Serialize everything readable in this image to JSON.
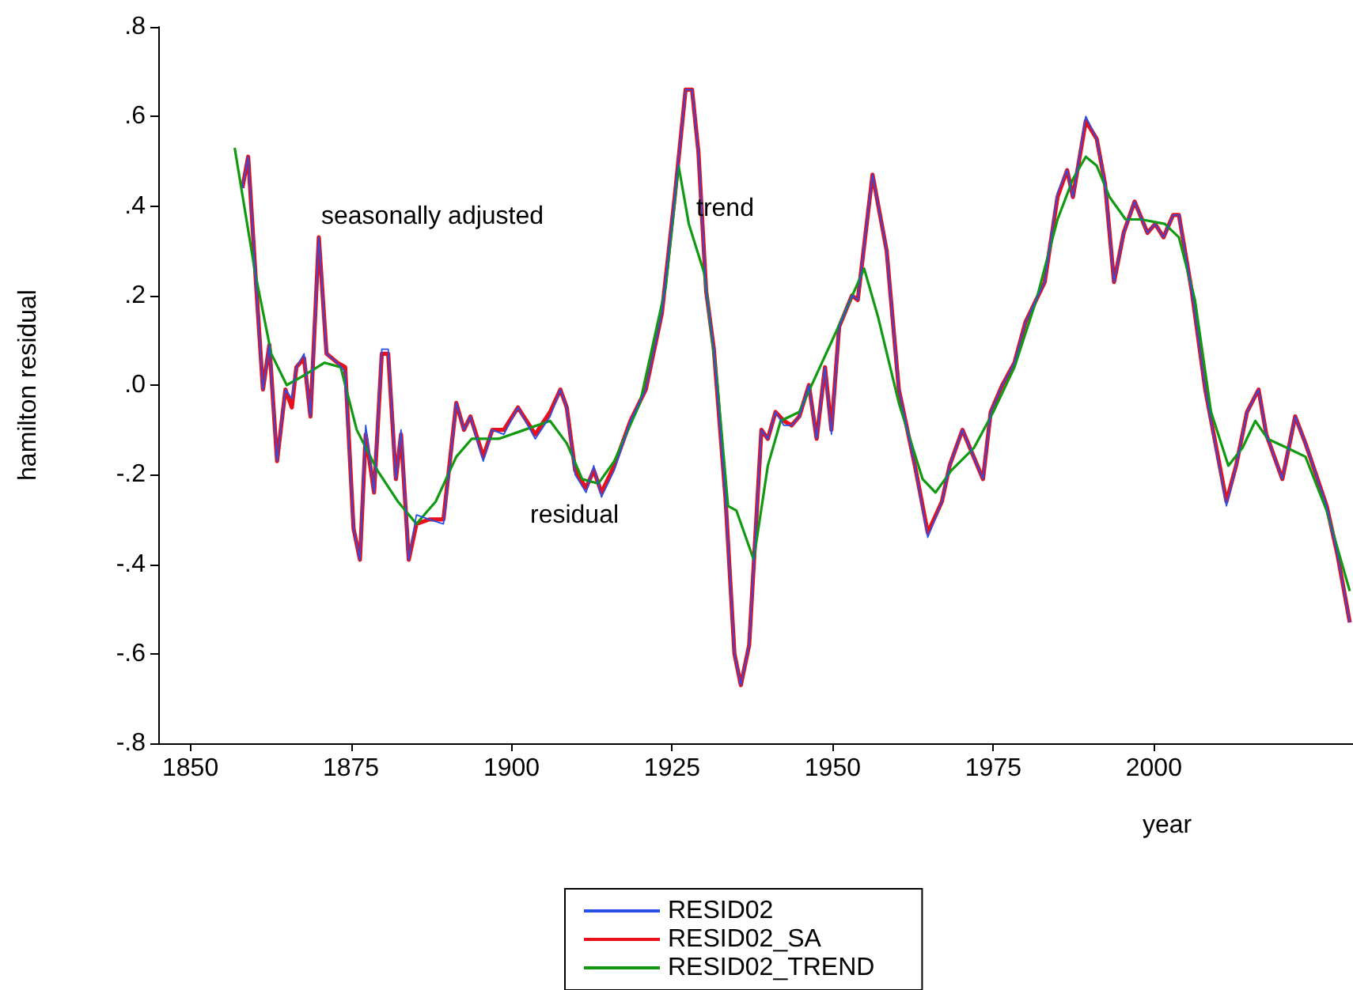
{
  "chart_data": {
    "type": "line",
    "xlabel": "year",
    "ylabel": "hamilton residual",
    "xlim": [
      1845,
      2031
    ],
    "xticks": [
      1850,
      1875,
      1900,
      1925,
      1950,
      1975,
      2000
    ],
    "ylim": [
      -0.8,
      0.8
    ],
    "yticks": [
      {
        "value": 0.8,
        "label": ".8"
      },
      {
        "value": 0.6,
        "label": ".6"
      },
      {
        "value": 0.4,
        "label": ".4"
      },
      {
        "value": 0.2,
        "label": ".2"
      },
      {
        "value": 0,
        "label": ".0"
      },
      {
        "value": -0.2,
        "label": "-.2"
      },
      {
        "value": -0.4,
        "label": "-.4"
      },
      {
        "value": -0.6,
        "label": "-.6"
      },
      {
        "value": -0.8,
        "label": "-.8"
      }
    ],
    "grid": false,
    "legend": "bottom",
    "marker": "none",
    "line_style": "solid",
    "annotations": [
      "seasonally adjusted",
      "trend",
      "residual"
    ],
    "series": [
      {
        "name": "RESID02",
        "color": "#2a4fe8",
        "x": [
          1858.1,
          1859,
          1860.3,
          1861.3,
          1862.3,
          1863.5,
          1864.8,
          1865.8,
          1866.5,
          1867.7,
          1868.7,
          1870,
          1871.2,
          1872.9,
          1874.1,
          1875.4,
          1876.4,
          1877.3,
          1878.6,
          1879.8,
          1880.8,
          1882,
          1882.8,
          1884,
          1885.2,
          1887.2,
          1889.4,
          1891.4,
          1892.6,
          1893.6,
          1895.6,
          1897,
          1898.8,
          1901,
          1903.7,
          1906,
          1907.6,
          1908.6,
          1909.9,
          1911.6,
          1912.8,
          1914,
          1916,
          1918.5,
          1920.9,
          1923.4,
          1925.4,
          1927.1,
          1928.1,
          1929.1,
          1930.3,
          1931.5,
          1933.3,
          1934.7,
          1935.7,
          1937,
          1938.9,
          1939.9,
          1941.1,
          1942.4,
          1943.6,
          1944.8,
          1946.3,
          1947.5,
          1948.8,
          1949.8,
          1951,
          1953,
          1953.9,
          1956.2,
          1958.4,
          1960.3,
          1962.8,
          1964.8,
          1967,
          1968.2,
          1970.2,
          1973.4,
          1974.6,
          1976.4,
          1978.3,
          1980,
          1983,
          1985,
          1986.5,
          1987.4,
          1989.4,
          1991.1,
          1992.4,
          1993.8,
          1995.3,
          1997,
          1999,
          2000.2,
          2001.5,
          2003,
          2003.9,
          2005.9,
          2008,
          2011.3,
          2012.8,
          2014.5,
          2016.3,
          2017.5,
          2020,
          2022,
          2023.6,
          2026.9,
          2028.6,
          2030.5
        ],
        "values": [
          0.44,
          0.51,
          0.21,
          -0.01,
          0.09,
          -0.17,
          -0.01,
          -0.03,
          0.04,
          0.07,
          -0.07,
          0.33,
          0.07,
          0.05,
          0.03,
          -0.32,
          -0.39,
          -0.09,
          -0.24,
          0.08,
          0.08,
          -0.21,
          -0.1,
          -0.39,
          -0.29,
          -0.3,
          -0.31,
          -0.04,
          -0.1,
          -0.07,
          -0.17,
          -0.1,
          -0.11,
          -0.05,
          -0.12,
          -0.07,
          -0.01,
          -0.05,
          -0.2,
          -0.24,
          -0.18,
          -0.25,
          -0.19,
          -0.08,
          -0.01,
          0.16,
          0.42,
          0.66,
          0.66,
          0.52,
          0.21,
          0.08,
          -0.25,
          -0.6,
          -0.67,
          -0.58,
          -0.1,
          -0.12,
          -0.06,
          -0.09,
          -0.09,
          -0.07,
          0,
          -0.12,
          0.04,
          -0.11,
          0.13,
          0.2,
          0.19,
          0.47,
          0.3,
          -0.01,
          -0.18,
          -0.34,
          -0.26,
          -0.18,
          -0.1,
          -0.21,
          -0.06,
          0,
          0.05,
          0.14,
          0.23,
          0.43,
          0.48,
          0.42,
          0.6,
          0.55,
          0.45,
          0.23,
          0.34,
          0.41,
          0.34,
          0.36,
          0.33,
          0.38,
          0.38,
          0.21,
          -0.01,
          -0.27,
          -0.18,
          -0.06,
          -0.01,
          -0.11,
          -0.21,
          -0.07,
          -0.13,
          -0.27,
          -0.38,
          -0.53
        ]
      },
      {
        "name": "RESID02_SA",
        "color": "#e8101a",
        "x": [
          1858.1,
          1859,
          1860.3,
          1861.3,
          1862.3,
          1863.5,
          1864.8,
          1865.8,
          1866.5,
          1867.7,
          1868.7,
          1870,
          1871.2,
          1872.9,
          1874.1,
          1875.4,
          1876.4,
          1877.3,
          1878.6,
          1879.8,
          1880.8,
          1882,
          1882.8,
          1884,
          1885.2,
          1887.2,
          1889.4,
          1891.4,
          1892.6,
          1893.6,
          1895.6,
          1897,
          1898.8,
          1901,
          1903.7,
          1906,
          1907.6,
          1908.6,
          1909.9,
          1911.6,
          1912.8,
          1914,
          1916,
          1918.5,
          1920.9,
          1923.4,
          1925.4,
          1927.1,
          1928.1,
          1929.1,
          1930.3,
          1931.5,
          1933.3,
          1934.7,
          1935.7,
          1937,
          1938.9,
          1939.9,
          1941.1,
          1942.4,
          1943.6,
          1944.8,
          1946.3,
          1947.5,
          1948.8,
          1949.8,
          1951,
          1953,
          1953.9,
          1956.2,
          1958.4,
          1960.3,
          1962.8,
          1964.8,
          1967,
          1968.2,
          1970.2,
          1973.4,
          1974.6,
          1976.4,
          1978.3,
          1980,
          1983,
          1985,
          1986.5,
          1987.4,
          1989.4,
          1991.1,
          1992.4,
          1993.8,
          1995.3,
          1997,
          1999,
          2000.2,
          2001.5,
          2003,
          2003.9,
          2005.9,
          2008,
          2011.3,
          2012.8,
          2014.5,
          2016.3,
          2017.5,
          2020,
          2022,
          2023.6,
          2026.9,
          2028.6,
          2030.5
        ],
        "values": [
          0.44,
          0.51,
          0.21,
          -0.01,
          0.09,
          -0.17,
          -0.01,
          -0.05,
          0.04,
          0.06,
          -0.07,
          0.33,
          0.07,
          0.05,
          0.04,
          -0.32,
          -0.39,
          -0.11,
          -0.24,
          0.07,
          0.07,
          -0.21,
          -0.11,
          -0.39,
          -0.31,
          -0.3,
          -0.3,
          -0.04,
          -0.1,
          -0.07,
          -0.16,
          -0.1,
          -0.1,
          -0.05,
          -0.11,
          -0.06,
          -0.01,
          -0.05,
          -0.19,
          -0.23,
          -0.19,
          -0.24,
          -0.18,
          -0.08,
          -0.01,
          0.16,
          0.42,
          0.66,
          0.66,
          0.52,
          0.21,
          0.08,
          -0.25,
          -0.6,
          -0.67,
          -0.58,
          -0.1,
          -0.12,
          -0.06,
          -0.08,
          -0.09,
          -0.07,
          0,
          -0.12,
          0.04,
          -0.1,
          0.13,
          0.2,
          0.19,
          0.47,
          0.3,
          -0.01,
          -0.18,
          -0.33,
          -0.26,
          -0.18,
          -0.1,
          -0.21,
          -0.06,
          0,
          0.05,
          0.14,
          0.23,
          0.42,
          0.48,
          0.42,
          0.59,
          0.55,
          0.45,
          0.23,
          0.34,
          0.41,
          0.34,
          0.36,
          0.33,
          0.38,
          0.38,
          0.21,
          -0.01,
          -0.26,
          -0.18,
          -0.06,
          -0.01,
          -0.11,
          -0.21,
          -0.07,
          -0.13,
          -0.27,
          -0.38,
          -0.53
        ]
      },
      {
        "name": "RESID02_TREND",
        "color": "#119911",
        "x": [
          1856.9,
          1860.1,
          1862.6,
          1865,
          1867.5,
          1870.9,
          1873.4,
          1875.9,
          1879.1,
          1882.3,
          1885.2,
          1888.2,
          1891.4,
          1893.8,
          1898,
          1902,
          1906,
          1908.6,
          1911,
          1913.5,
          1916,
          1920,
          1924,
          1926,
          1927.6,
          1930,
          1932,
          1933.7,
          1935,
          1937.7,
          1939.9,
          1941.9,
          1944.8,
          1948,
          1951.2,
          1954.9,
          1957.1,
          1960.3,
          1964,
          1966,
          1968.5,
          1972,
          1975,
          1978.3,
          1981.7,
          1985,
          1987.4,
          1989.4,
          1991.1,
          1993.1,
          1995.6,
          1998,
          2001.7,
          2003.9,
          2006.4,
          2008.9,
          2011.6,
          2013.8,
          2015.8,
          2017.7,
          2020.7,
          2023.6,
          2026.9,
          2030.5
        ],
        "values": [
          0.53,
          0.25,
          0.07,
          0,
          0.02,
          0.05,
          0.04,
          -0.1,
          -0.19,
          -0.26,
          -0.31,
          -0.26,
          -0.16,
          -0.12,
          -0.12,
          -0.1,
          -0.08,
          -0.13,
          -0.21,
          -0.22,
          -0.17,
          -0.04,
          0.22,
          0.49,
          0.36,
          0.25,
          0.01,
          -0.27,
          -0.28,
          -0.39,
          -0.18,
          -0.08,
          -0.06,
          0.04,
          0.14,
          0.26,
          0.15,
          -0.04,
          -0.21,
          -0.24,
          -0.19,
          -0.14,
          -0.06,
          0.04,
          0.19,
          0.37,
          0.46,
          0.51,
          0.49,
          0.42,
          0.37,
          0.37,
          0.36,
          0.33,
          0.19,
          -0.06,
          -0.18,
          -0.14,
          -0.08,
          -0.12,
          -0.14,
          -0.16,
          -0.28,
          -0.46
        ]
      }
    ]
  }
}
